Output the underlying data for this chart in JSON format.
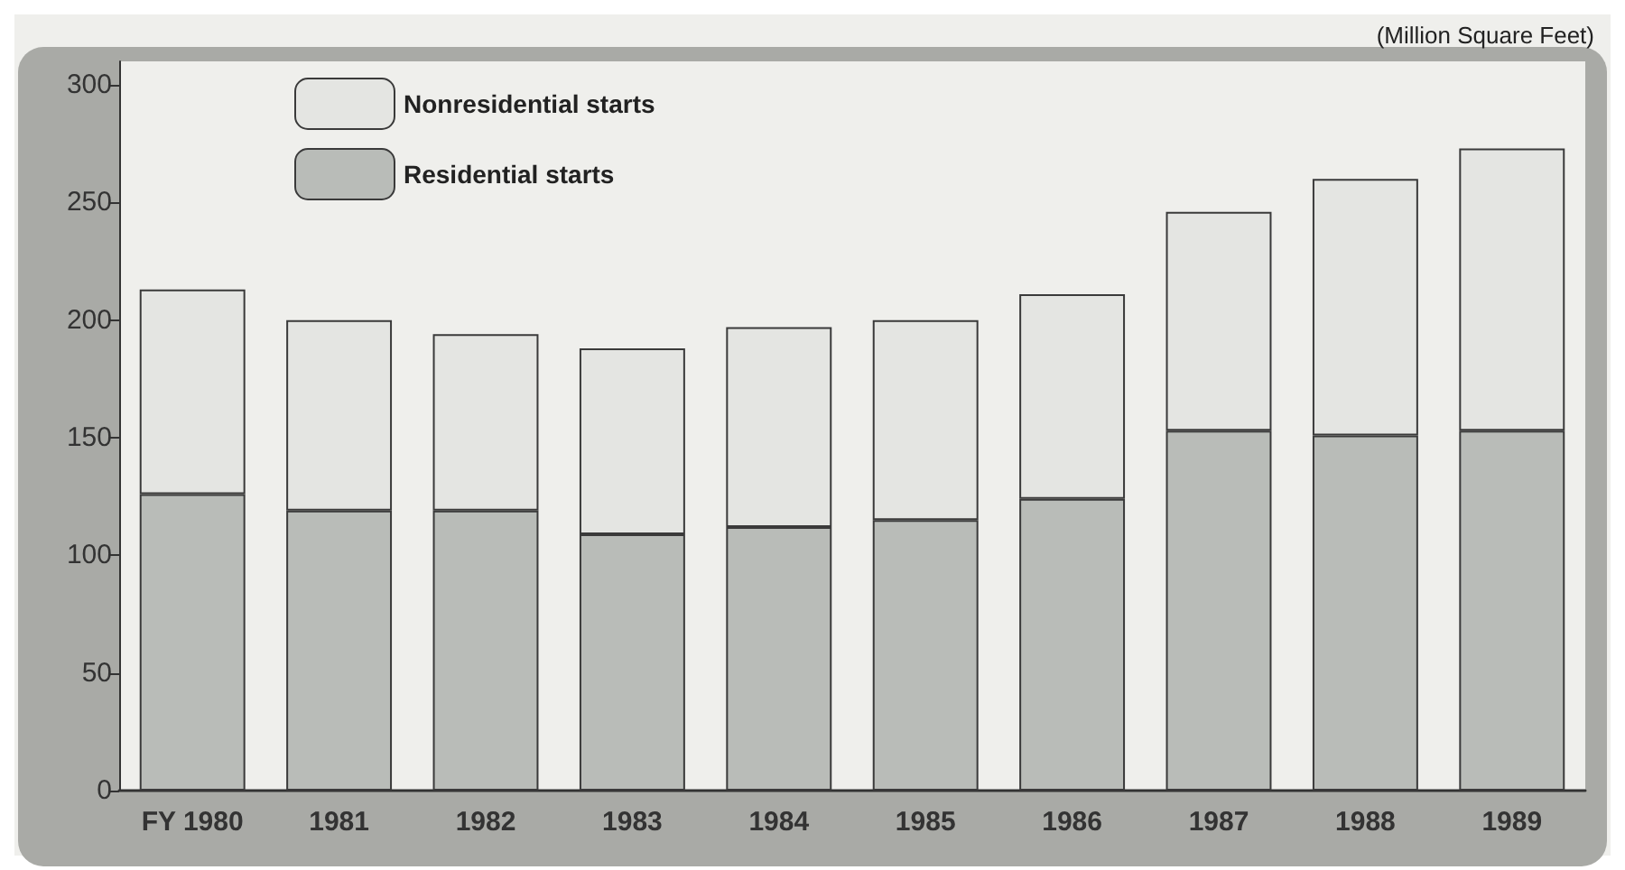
{
  "chart_data": {
    "type": "bar",
    "stacked": true,
    "ylabel": "(Million Square Feet)",
    "categories": [
      "FY 1980",
      "1981",
      "1982",
      "1983",
      "1984",
      "1985",
      "1986",
      "1987",
      "1988",
      "1989"
    ],
    "series": [
      {
        "name": "Residential starts",
        "color": "#b9bcb8",
        "values": [
          126,
          119,
          119,
          109,
          112,
          115,
          124,
          153,
          151,
          153
        ]
      },
      {
        "name": "Nonresidential starts",
        "color": "#e4e5e2",
        "values": [
          87,
          81,
          75,
          79,
          85,
          85,
          87,
          93,
          109,
          120
        ]
      }
    ],
    "ylim": [
      0,
      310
    ],
    "yticks": [
      0,
      50,
      100,
      150,
      200,
      250,
      300
    ],
    "grid": false,
    "legend": "top left"
  }
}
